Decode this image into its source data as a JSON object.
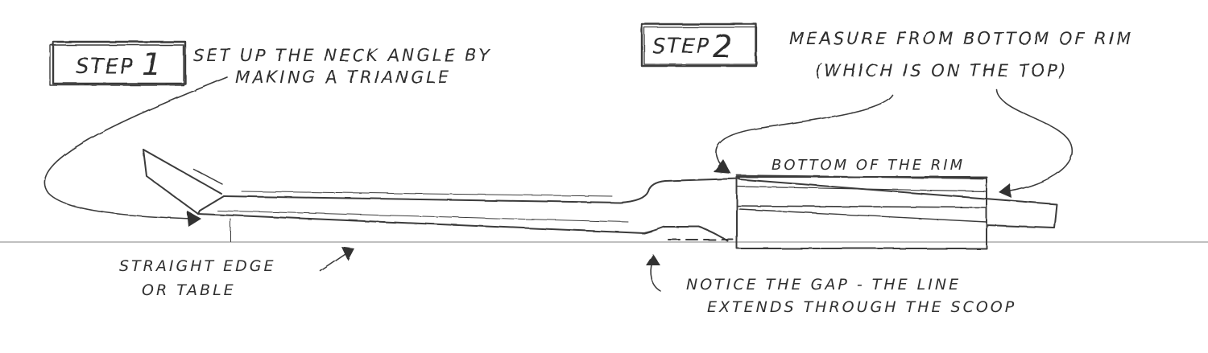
{
  "step1": {
    "label": "STEP",
    "number": "1",
    "note_line1": "SET UP THE NECK ANGLE BY",
    "note_line2": "MAKING A TRIANGLE"
  },
  "step2": {
    "label": "STEP",
    "number": "2",
    "note_line1": "MEASURE FROM BOTTOM OF RIM",
    "note_line2": "(WHICH IS ON THE TOP)"
  },
  "labels": {
    "rim": "BOTTOM OF THE RIM",
    "straight_edge_line1": "STRAIGHT EDGE",
    "straight_edge_line2": "OR TABLE",
    "gap_line1": "NOTICE THE GAP - THE LINE",
    "gap_line2": "EXTENDS THROUGH THE SCOOP"
  }
}
